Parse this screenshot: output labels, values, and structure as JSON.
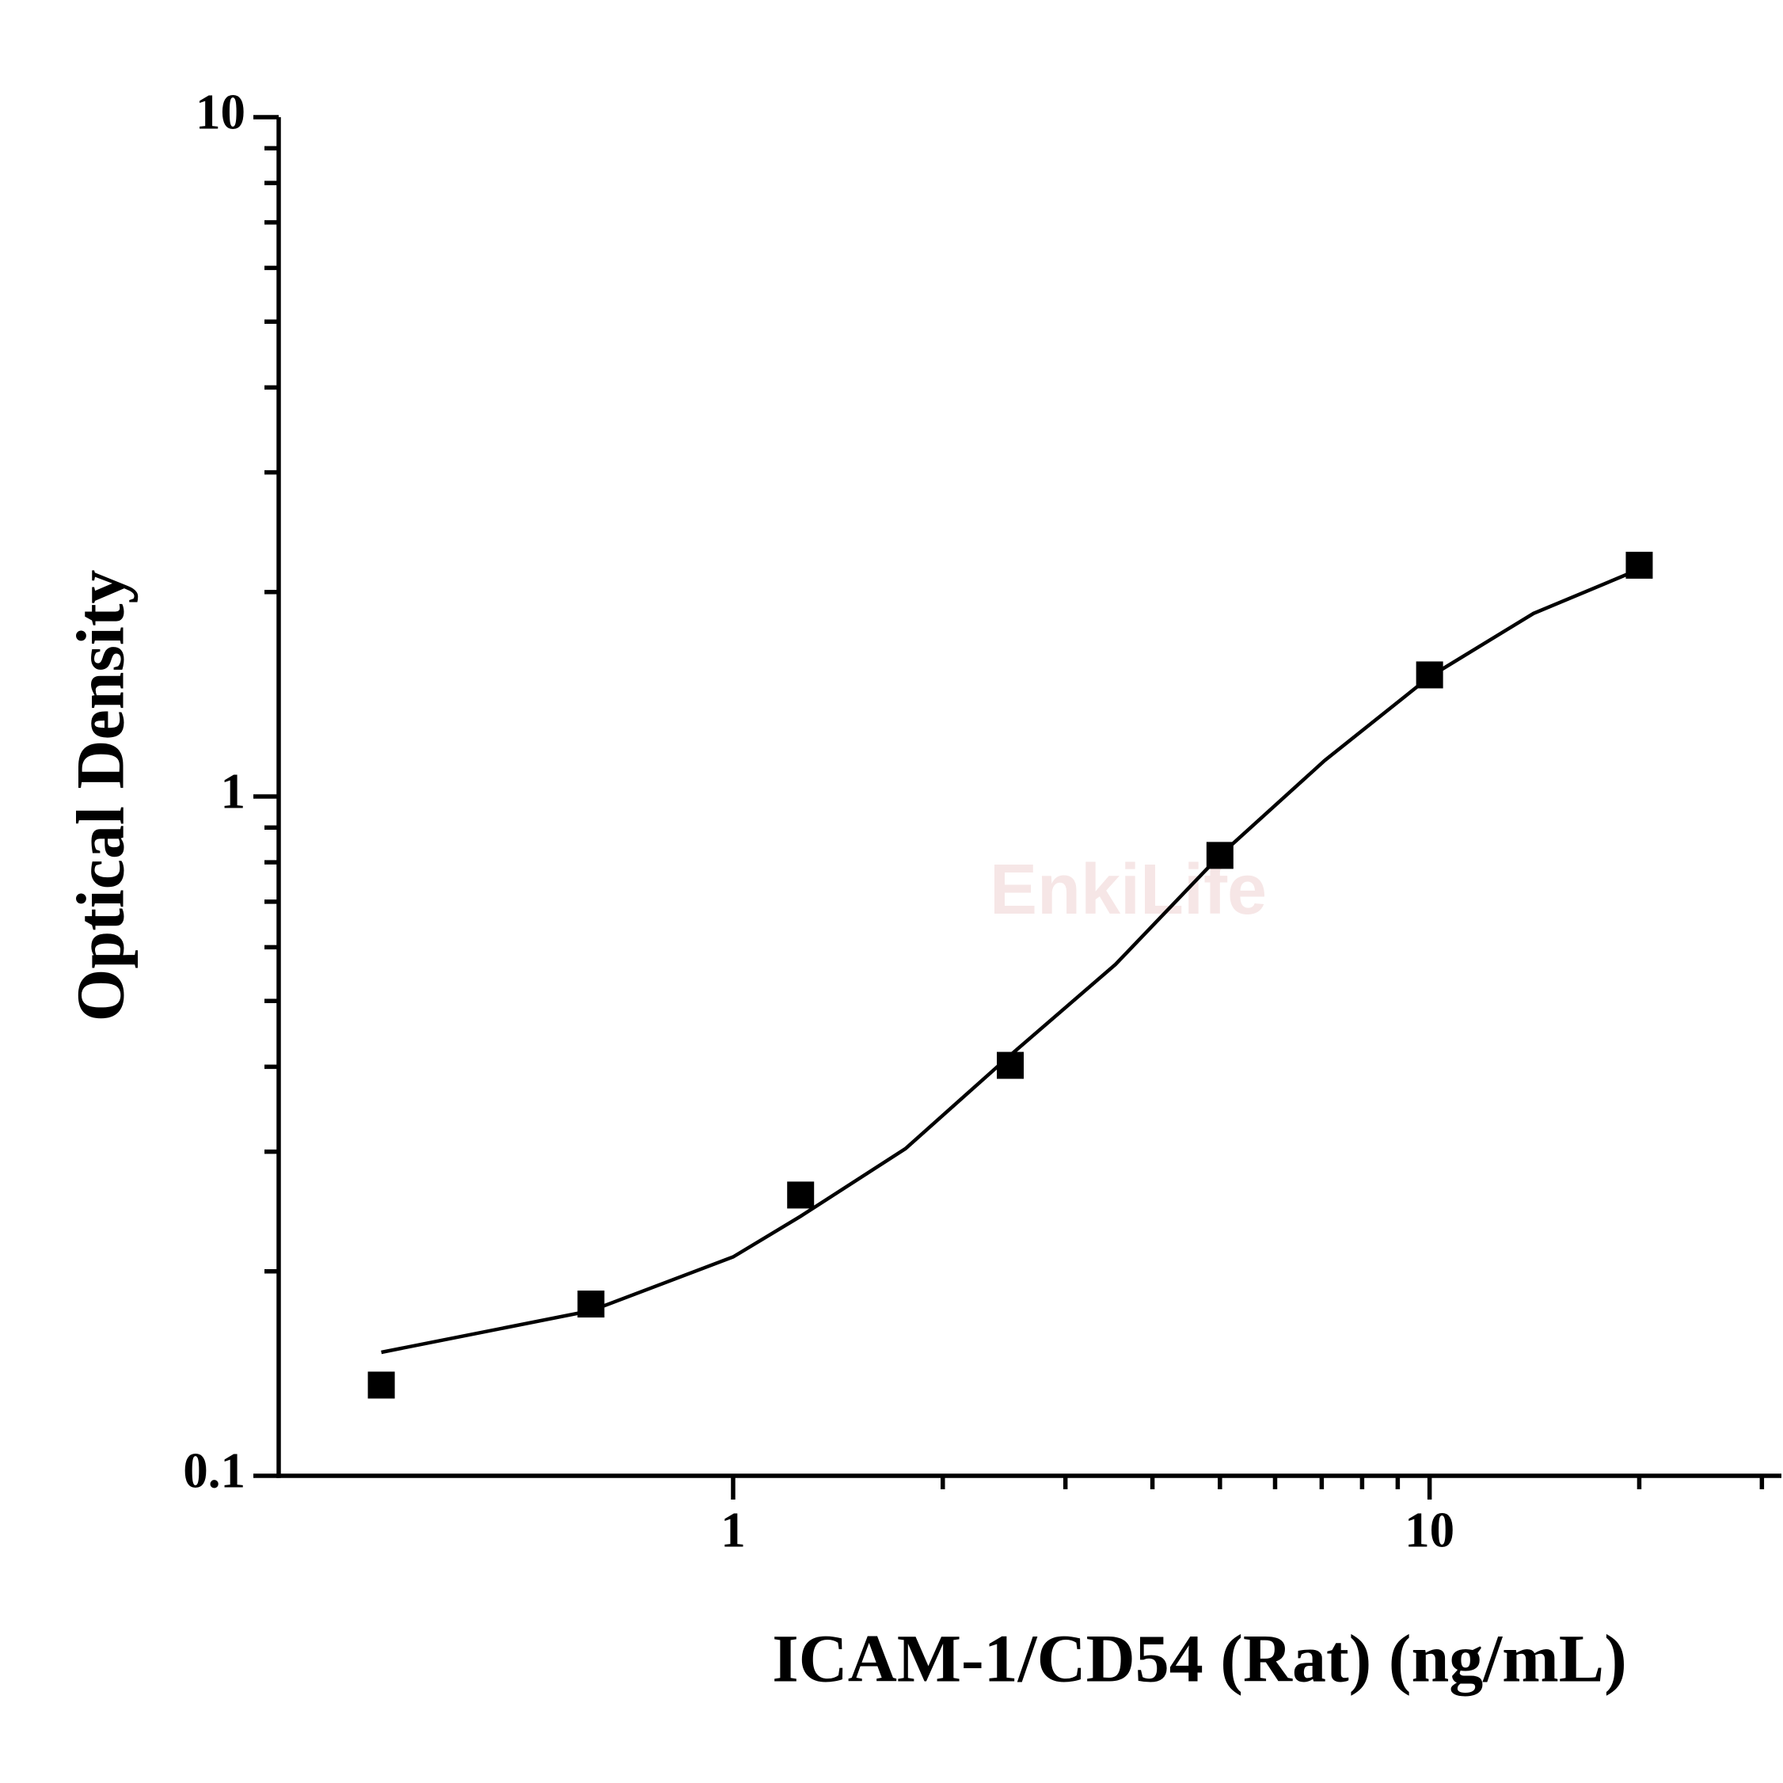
{
  "chart_data": {
    "type": "scatter",
    "x_label": "ICAM-1/CD54 (Rat) (ng/mL)",
    "y_label": "Optical Density",
    "watermark": "EnkiLife",
    "x": [
      0.3125,
      0.625,
      1.25,
      2.5,
      5,
      10,
      20
    ],
    "values": [
      0.136,
      0.179,
      0.259,
      0.402,
      0.819,
      1.51,
      2.19
    ],
    "color": "#000000",
    "curve": {
      "x": [
        0.3125,
        0.625,
        1,
        1.25,
        1.767,
        2.5,
        3.54,
        5,
        7.07,
        10,
        14.1,
        20
      ],
      "values": [
        0.152,
        0.175,
        0.21,
        0.241,
        0.303,
        0.416,
        0.566,
        0.819,
        1.13,
        1.5,
        1.86,
        2.16
      ]
    },
    "x_log": true,
    "y_log": true,
    "xlim": [
      0.2226,
      32
    ],
    "ylim": [
      0.1,
      10
    ],
    "xticks": [
      1,
      10
    ],
    "yticks": [
      0.1,
      1,
      10
    ],
    "xminorticks": [
      2,
      3,
      4,
      5,
      6,
      7,
      8,
      9,
      20,
      30
    ],
    "yminorticks": [
      0.2,
      0.3,
      0.4,
      0.5,
      0.6,
      0.7,
      0.8,
      0.9,
      2,
      3,
      4,
      5,
      6,
      7,
      8,
      9
    ]
  }
}
